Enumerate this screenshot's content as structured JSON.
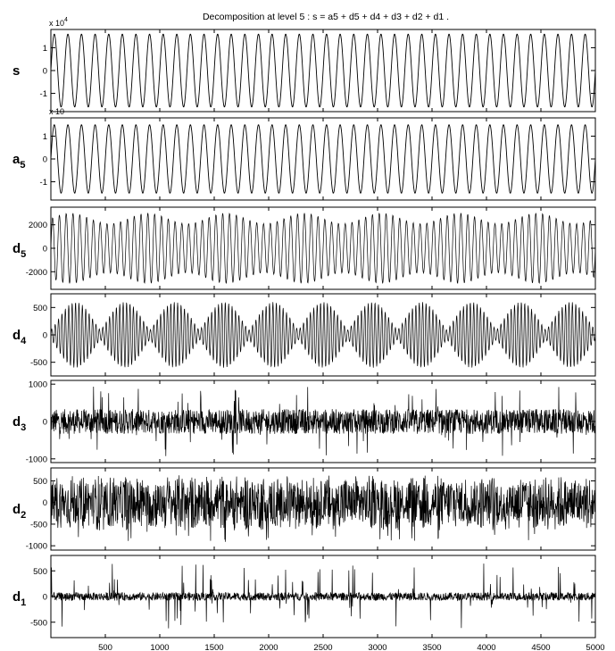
{
  "chart_data": {
    "type": "line",
    "title": "Decomposition at level 5 : s = a5 + d5 + d4 + d3 + d2 + d1 .",
    "xlim": [
      0,
      5000
    ],
    "xticks": [
      "500",
      "1000",
      "1500",
      "2000",
      "2500",
      "3000",
      "3500",
      "4000",
      "4500",
      "5000"
    ],
    "grid": false,
    "panels": [
      {
        "name": "s",
        "label_main": "s",
        "label_sub": "",
        "exponent_label": "x 10",
        "exponent": "4",
        "ylim": [
          -1.8,
          1.8
        ],
        "yticks": [
          "1",
          "0",
          "-1"
        ],
        "amplitude": 1.6,
        "cycles": 40,
        "signal": "sinusoid"
      },
      {
        "name": "a5",
        "label_main": "a",
        "label_sub": "5",
        "exponent_label": "x 10",
        "exponent": "",
        "ylim": [
          -1.8,
          1.8
        ],
        "yticks": [
          "1",
          "0",
          "-1"
        ],
        "amplitude": 1.5,
        "cycles": 40,
        "signal": "sinusoid"
      },
      {
        "name": "d5",
        "label_main": "d",
        "label_sub": "5",
        "exponent_label": "",
        "exponent": "",
        "ylim": [
          -3500,
          3500
        ],
        "yticks": [
          "2000",
          "0",
          "-2000"
        ],
        "amplitude": 3000,
        "cycles": 80,
        "signal": "oscillation"
      },
      {
        "name": "d4",
        "label_main": "d",
        "label_sub": "4",
        "exponent_label": "",
        "exponent": "",
        "ylim": [
          -750,
          750
        ],
        "yticks": [
          "500",
          "0",
          "-500"
        ],
        "amplitude": 600,
        "cycles": 160,
        "signal": "modulated"
      },
      {
        "name": "d3",
        "label_main": "d",
        "label_sub": "3",
        "exponent_label": "",
        "exponent": "",
        "ylim": [
          -1100,
          1100
        ],
        "yticks": [
          "1000",
          "0",
          "-1000"
        ],
        "amplitude": 950,
        "cycles": 0,
        "signal": "bursty"
      },
      {
        "name": "d2",
        "label_main": "d",
        "label_sub": "2",
        "exponent_label": "",
        "exponent": "",
        "ylim": [
          -1100,
          800
        ],
        "yticks": [
          "500",
          "0",
          "-500",
          "-1000"
        ],
        "amplitude": 650,
        "cycles": 0,
        "signal": "noise"
      },
      {
        "name": "d1",
        "label_main": "d",
        "label_sub": "1",
        "exponent_label": "",
        "exponent": "",
        "ylim": [
          -800,
          800
        ],
        "yticks": [
          "500",
          "0",
          "-500"
        ],
        "amplitude": 650,
        "cycles": 0,
        "signal": "spiky"
      }
    ]
  }
}
